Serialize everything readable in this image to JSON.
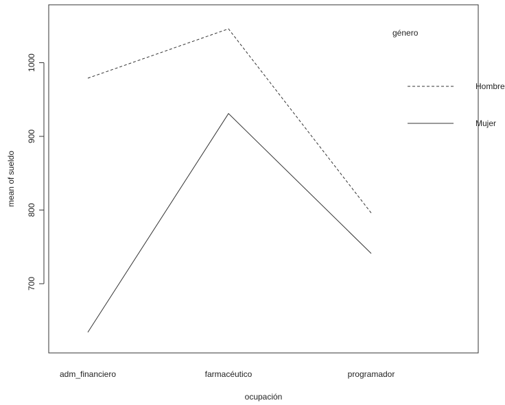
{
  "chart_data": {
    "type": "line",
    "title": "",
    "xlabel": "ocupación",
    "ylabel": "mean of sueldo",
    "categories": [
      "adm_financiero",
      "farmacéutico",
      "programador"
    ],
    "yticks": [
      700,
      800,
      900,
      1000
    ],
    "ylim": [
      620,
      1060
    ],
    "series": [
      {
        "name": "Hombre",
        "values": [
          979,
          1046,
          796
        ],
        "line_style": "dashed",
        "color": "#333333"
      },
      {
        "name": "Mujer",
        "values": [
          634,
          931,
          741
        ],
        "line_style": "solid",
        "color": "#333333"
      }
    ],
    "legend": {
      "title": "género",
      "position": "top-right",
      "labels": [
        "Hombre",
        "Mujer"
      ]
    },
    "grid": false
  }
}
